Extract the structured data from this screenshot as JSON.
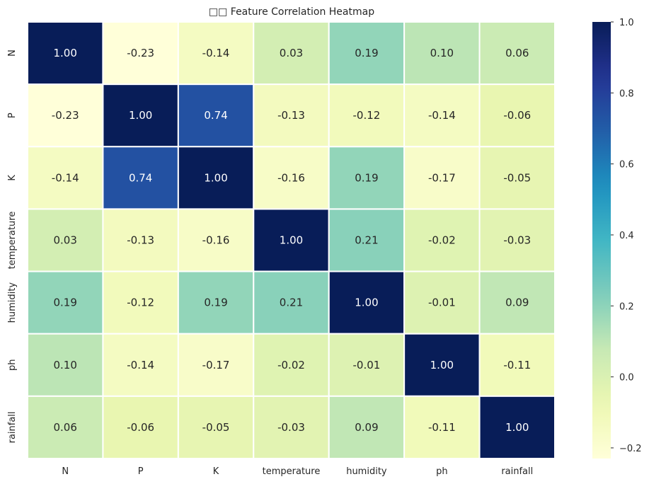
{
  "chart_data": {
    "type": "heatmap",
    "title": "□□ Feature Correlation Heatmap",
    "x_labels": [
      "N",
      "P",
      "K",
      "temperature",
      "humidity",
      "ph",
      "rainfall"
    ],
    "y_labels": [
      "N",
      "P",
      "K",
      "temperature",
      "humidity",
      "ph",
      "rainfall"
    ],
    "values": [
      [
        1.0,
        -0.23,
        -0.14,
        0.03,
        0.19,
        0.1,
        0.06
      ],
      [
        -0.23,
        1.0,
        0.74,
        -0.13,
        -0.12,
        -0.14,
        -0.06
      ],
      [
        -0.14,
        0.74,
        1.0,
        -0.16,
        0.19,
        -0.17,
        -0.05
      ],
      [
        0.03,
        -0.13,
        -0.16,
        1.0,
        0.21,
        -0.02,
        -0.03
      ],
      [
        0.19,
        -0.12,
        0.19,
        0.21,
        1.0,
        -0.01,
        0.09
      ],
      [
        0.1,
        -0.14,
        -0.17,
        -0.02,
        -0.01,
        1.0,
        -0.11
      ],
      [
        0.06,
        -0.06,
        -0.05,
        -0.03,
        0.09,
        -0.11,
        1.0
      ]
    ],
    "value_format": "2 decimals",
    "colormap": "YlGnBu",
    "vmin": -0.23,
    "vmax": 1.0,
    "colorbar_ticks": [
      -0.2,
      0.0,
      0.2,
      0.4,
      0.6,
      0.8,
      1.0
    ],
    "colorbar_tick_labels": [
      "−0.2",
      "0.0",
      "0.2",
      "0.4",
      "0.6",
      "0.8",
      "1.0"
    ],
    "cell_border_color": "#ffffff",
    "text_color_light": "#ffffff",
    "text_color_dark": "#262626"
  }
}
